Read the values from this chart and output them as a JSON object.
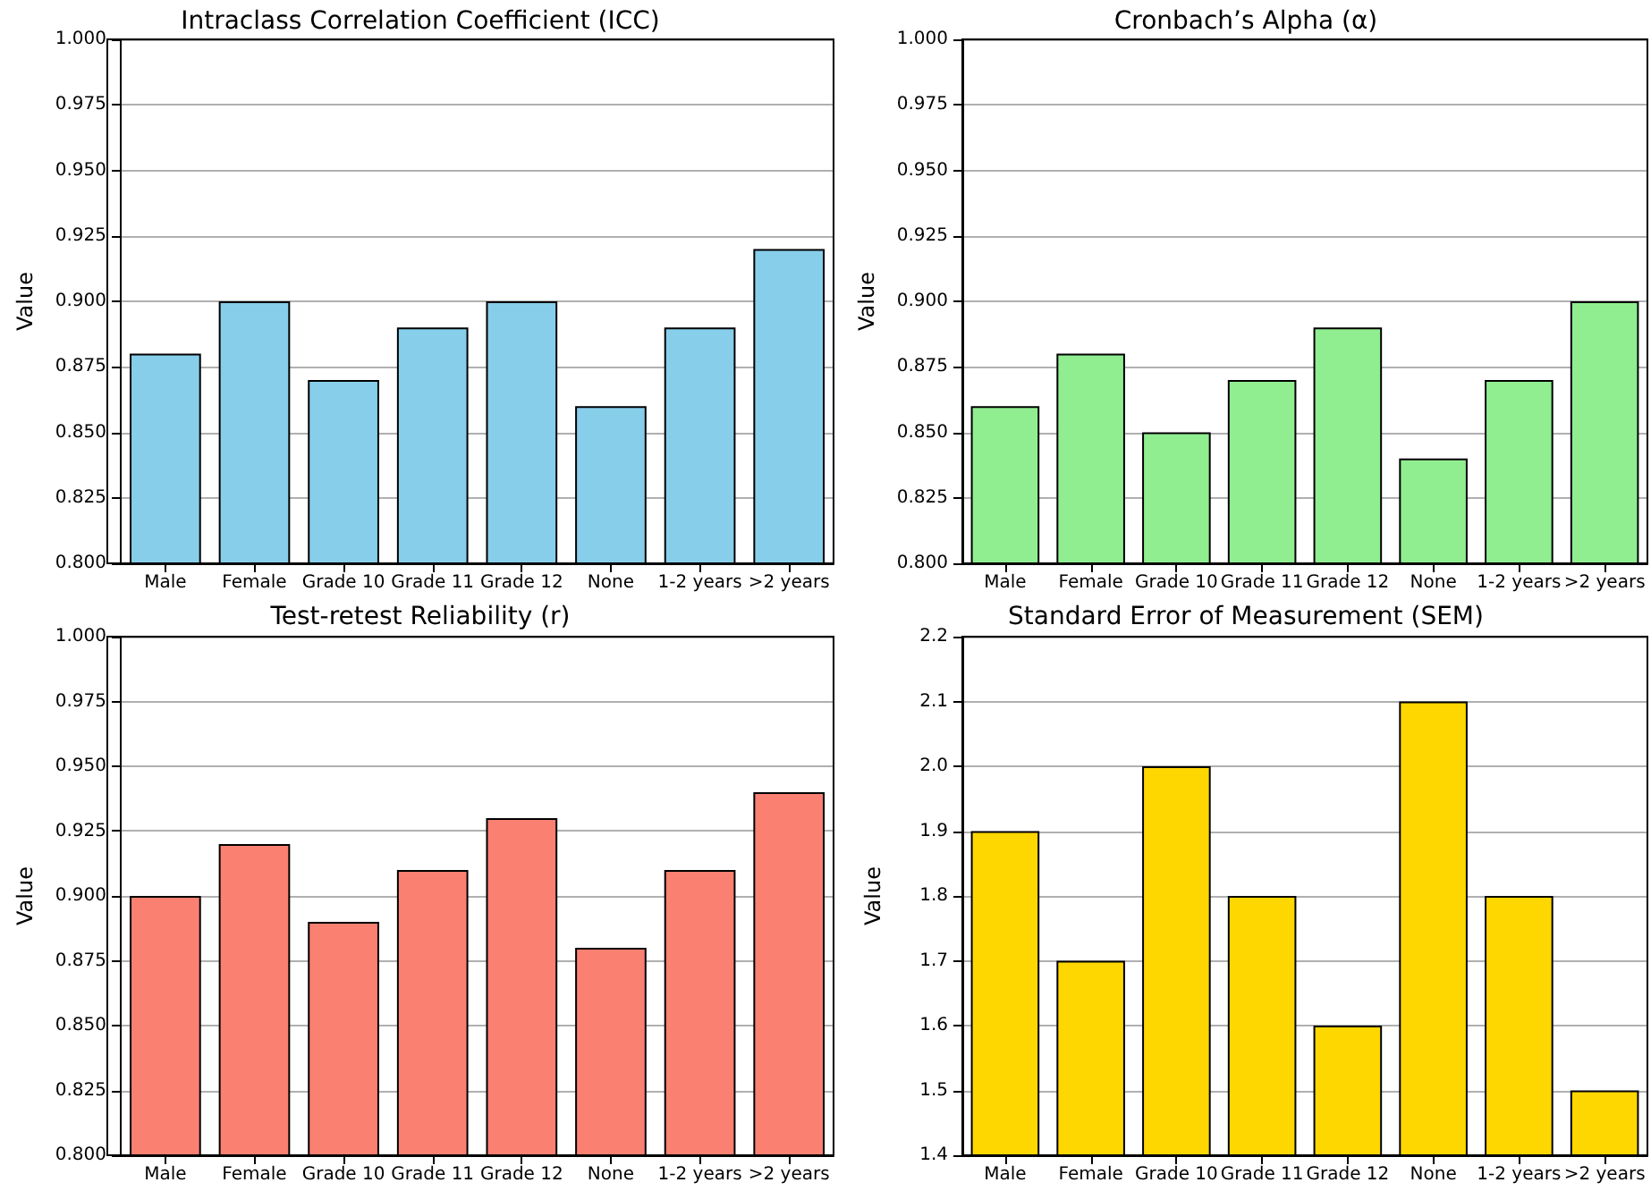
{
  "chart_data": [
    {
      "type": "bar",
      "title": "Intraclass Correlation Coefficient (ICC)",
      "ylabel": "Value",
      "categories": [
        "Male",
        "Female",
        "Grade 10",
        "Grade 11",
        "Grade 12",
        "None",
        "1-2 years",
        ">2 years"
      ],
      "values": [
        0.88,
        0.9,
        0.87,
        0.89,
        0.9,
        0.86,
        0.89,
        0.92
      ],
      "color": "#87ceeb",
      "ylim": [
        0.8,
        1.0
      ],
      "yticks": [
        {
          "value": 0.8,
          "label": "0.800"
        },
        {
          "value": 0.825,
          "label": "0.825"
        },
        {
          "value": 0.85,
          "label": "0.850"
        },
        {
          "value": 0.875,
          "label": "0.875"
        },
        {
          "value": 0.9,
          "label": "0.900"
        },
        {
          "value": 0.925,
          "label": "0.925"
        },
        {
          "value": 0.95,
          "label": "0.950"
        },
        {
          "value": 0.975,
          "label": "0.975"
        },
        {
          "value": 1.0,
          "label": "1.000"
        }
      ],
      "grid": "y"
    },
    {
      "type": "bar",
      "title": "Cronbach’s Alpha (α)",
      "ylabel": "Value",
      "categories": [
        "Male",
        "Female",
        "Grade 10",
        "Grade 11",
        "Grade 12",
        "None",
        "1-2 years",
        ">2 years"
      ],
      "values": [
        0.86,
        0.88,
        0.85,
        0.87,
        0.89,
        0.84,
        0.87,
        0.9
      ],
      "color": "#90ee90",
      "ylim": [
        0.8,
        1.0
      ],
      "yticks": [
        {
          "value": 0.8,
          "label": "0.800"
        },
        {
          "value": 0.825,
          "label": "0.825"
        },
        {
          "value": 0.85,
          "label": "0.850"
        },
        {
          "value": 0.875,
          "label": "0.875"
        },
        {
          "value": 0.9,
          "label": "0.900"
        },
        {
          "value": 0.925,
          "label": "0.925"
        },
        {
          "value": 0.95,
          "label": "0.950"
        },
        {
          "value": 0.975,
          "label": "0.975"
        },
        {
          "value": 1.0,
          "label": "1.000"
        }
      ],
      "grid": "y"
    },
    {
      "type": "bar",
      "title": "Test-retest Reliability (r)",
      "ylabel": "Value",
      "categories": [
        "Male",
        "Female",
        "Grade 10",
        "Grade 11",
        "Grade 12",
        "None",
        "1-2 years",
        ">2 years"
      ],
      "values": [
        0.9,
        0.92,
        0.89,
        0.91,
        0.93,
        0.88,
        0.91,
        0.94
      ],
      "color": "#fa8072",
      "ylim": [
        0.8,
        1.0
      ],
      "yticks": [
        {
          "value": 0.8,
          "label": "0.800"
        },
        {
          "value": 0.825,
          "label": "0.825"
        },
        {
          "value": 0.85,
          "label": "0.850"
        },
        {
          "value": 0.875,
          "label": "0.875"
        },
        {
          "value": 0.9,
          "label": "0.900"
        },
        {
          "value": 0.925,
          "label": "0.925"
        },
        {
          "value": 0.95,
          "label": "0.950"
        },
        {
          "value": 0.975,
          "label": "0.975"
        },
        {
          "value": 1.0,
          "label": "1.000"
        }
      ],
      "grid": "y"
    },
    {
      "type": "bar",
      "title": "Standard Error of Measurement (SEM)",
      "ylabel": "Value",
      "categories": [
        "Male",
        "Female",
        "Grade 10",
        "Grade 11",
        "Grade 12",
        "None",
        "1-2 years",
        ">2 years"
      ],
      "values": [
        1.9,
        1.7,
        2.0,
        1.8,
        1.6,
        2.1,
        1.8,
        1.5
      ],
      "color": "#ffd700",
      "ylim": [
        1.4,
        2.2
      ],
      "yticks": [
        {
          "value": 1.4,
          "label": "1.4"
        },
        {
          "value": 1.5,
          "label": "1.5"
        },
        {
          "value": 1.6,
          "label": "1.6"
        },
        {
          "value": 1.7,
          "label": "1.7"
        },
        {
          "value": 1.8,
          "label": "1.8"
        },
        {
          "value": 1.9,
          "label": "1.9"
        },
        {
          "value": 2.0,
          "label": "2.0"
        },
        {
          "value": 2.1,
          "label": "2.1"
        },
        {
          "value": 2.2,
          "label": "2.2"
        }
      ],
      "grid": "y"
    }
  ]
}
